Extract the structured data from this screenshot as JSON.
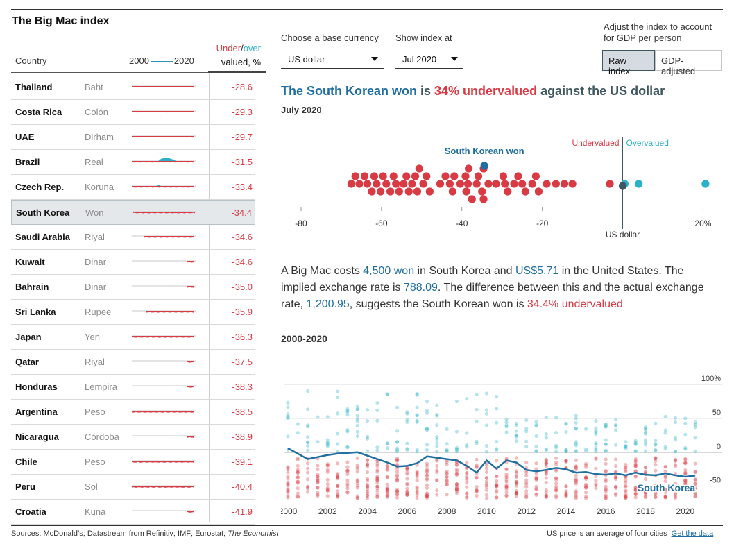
{
  "app_title": "The Big Mac index",
  "table": {
    "col_country": "Country",
    "col_years_start": "2000",
    "col_years_end": "2020",
    "col_under": "Under",
    "col_slash": "/",
    "col_over": "over",
    "col_valued": "valued, %",
    "rows": [
      {
        "country": "Thailand",
        "currency": "Baht",
        "value": "-28.6"
      },
      {
        "country": "Costa Rica",
        "currency": "Colón",
        "value": "-29.3"
      },
      {
        "country": "UAE",
        "currency": "Dirham",
        "value": "-29.7"
      },
      {
        "country": "Brazil",
        "currency": "Real",
        "value": "-31.5"
      },
      {
        "country": "Czech Rep.",
        "currency": "Koruna",
        "value": "-33.4"
      },
      {
        "country": "South Korea",
        "currency": "Won",
        "value": "-34.4",
        "selected": true
      },
      {
        "country": "Saudi Arabia",
        "currency": "Riyal",
        "value": "-34.6"
      },
      {
        "country": "Kuwait",
        "currency": "Dinar",
        "value": "-34.6"
      },
      {
        "country": "Bahrain",
        "currency": "Dinar",
        "value": "-35.0"
      },
      {
        "country": "Sri Lanka",
        "currency": "Rupee",
        "value": "-35.9"
      },
      {
        "country": "Japan",
        "currency": "Yen",
        "value": "-36.3"
      },
      {
        "country": "Qatar",
        "currency": "Riyal",
        "value": "-37.5"
      },
      {
        "country": "Honduras",
        "currency": "Lempira",
        "value": "-38.3"
      },
      {
        "country": "Argentina",
        "currency": "Peso",
        "value": "-38.5"
      },
      {
        "country": "Nicaragua",
        "currency": "Córdoba",
        "value": "-38.9"
      },
      {
        "country": "Chile",
        "currency": "Peso",
        "value": "-39.1"
      },
      {
        "country": "Peru",
        "currency": "Sol",
        "value": "-40.4"
      },
      {
        "country": "Croatia",
        "currency": "Kuna",
        "value": "-41.9"
      }
    ]
  },
  "controls": {
    "base_currency_label": "Choose a base currency",
    "base_currency_value": "US dollar",
    "show_index_label": "Show index at",
    "show_index_value": "Jul 2020",
    "adjust_label": "Adjust the index to account for GDP per person",
    "raw_index": "Raw index",
    "gdp_adjusted": "GDP-adjusted"
  },
  "headline": {
    "currency": "The South Korean won",
    "middle": " is ",
    "pct": "34% undervalued",
    "tail": " against the US dollar",
    "date": "July 2020"
  },
  "description": {
    "p1": "A Big Mac costs ",
    "local_price": "4,500 won",
    "p2": " in South Korea and ",
    "us_price": "US$5.71",
    "p3": " in the United States. The implied exchange rate is ",
    "implied_rate": "788.09",
    "p4": ". The difference between this and the actual exchange rate, ",
    "actual_rate": "1,200.95",
    "p5": ", suggests the South Korean won is ",
    "pct": "34.4% undervalued"
  },
  "range_title": "2000-2020",
  "sources": "Sources: McDonald’s; Datastream from Refinitiv; IMF; Eurostat; ",
  "sources_italic": "The Economist",
  "footnote": "US price is an average of four cities",
  "footnote_link": "Get the data",
  "colors": {
    "under": "#d93b45",
    "over": "#2cb1c9",
    "highlight": "#1f6ea0",
    "base": "#3f5661"
  },
  "chart_data": [
    {
      "type": "scatter",
      "title": "",
      "legend": [
        "Undervalued",
        "Overvalued"
      ],
      "base_label": "US dollar",
      "highlight_label": "South Korean won",
      "highlight_value": -34.4,
      "xlim": [
        -85,
        22
      ],
      "ticks": [
        "-80",
        "-60",
        "-40",
        "-20",
        "20%"
      ],
      "tick_values": [
        -80,
        -60,
        -40,
        -20,
        20
      ],
      "under_values": [
        -67.5,
        -66.5,
        -65.5,
        -64.2,
        -63.5,
        -62.4,
        -61.8,
        -61.2,
        -60.2,
        -59.6,
        -58.8,
        -57.8,
        -57.0,
        -56.4,
        -55.6,
        -54.5,
        -53.8,
        -53.2,
        -52.4,
        -51.6,
        -51.1,
        -50.6,
        -49.6,
        -48.8,
        -48.0,
        -45.4,
        -44.1,
        -43.0,
        -42.3,
        -41.9,
        -40.4,
        -39.1,
        -38.9,
        -38.5,
        -38.3,
        -37.5,
        -36.3,
        -35.9,
        -35.0,
        -34.6,
        -34.6,
        -33.4,
        -31.5,
        -29.7,
        -29.3,
        -28.6,
        -27.0,
        -26.0,
        -25.0,
        -24.2,
        -22.5,
        -21.6,
        -20.9,
        -18.9,
        -16.6,
        -14.5,
        -12.5,
        -3.2
      ],
      "over_values": [
        0.5,
        4.0,
        20.6
      ],
      "base_value": 0
    },
    {
      "type": "scatter",
      "title": "2000-2020",
      "x_ticks": [
        "2000",
        "2002",
        "2004",
        "2006",
        "2008",
        "2010",
        "2012",
        "2014",
        "2016",
        "2018",
        "2020"
      ],
      "y_ticks": [
        "100%",
        "50",
        "0",
        "-50"
      ],
      "ylim": [
        -80,
        140
      ],
      "xlim": [
        2000,
        2020.6
      ],
      "series": [
        {
          "name": "South Korea",
          "x": [
            2000.0,
            2000.5,
            2001.0,
            2002.0,
            2002.5,
            2003.0,
            2003.5,
            2004.0,
            2004.5,
            2005.0,
            2005.5,
            2006.0,
            2006.5,
            2007.0,
            2007.5,
            2008.0,
            2008.5,
            2009.0,
            2009.5,
            2010.0,
            2010.5,
            2011.0,
            2011.5,
            2012.0,
            2012.5,
            2013.0,
            2013.5,
            2014.0,
            2014.5,
            2015.0,
            2015.5,
            2016.0,
            2016.5,
            2017.0,
            2017.5,
            2018.0,
            2018.5,
            2019.0,
            2019.5,
            2020.0,
            2020.5
          ],
          "y": [
            6,
            -2,
            -10,
            -4,
            -2,
            -1,
            0,
            -5,
            -10,
            -15,
            -21,
            -20,
            -16,
            -6,
            -8,
            -10,
            -12,
            -20,
            -30,
            -12,
            -24,
            -12,
            -15,
            -26,
            -28,
            -26,
            -23,
            -25,
            -30,
            -29,
            -32,
            -33,
            -31,
            -34,
            -30,
            -33,
            -34,
            -31,
            -34,
            -36,
            -34.4
          ]
        }
      ]
    }
  ]
}
